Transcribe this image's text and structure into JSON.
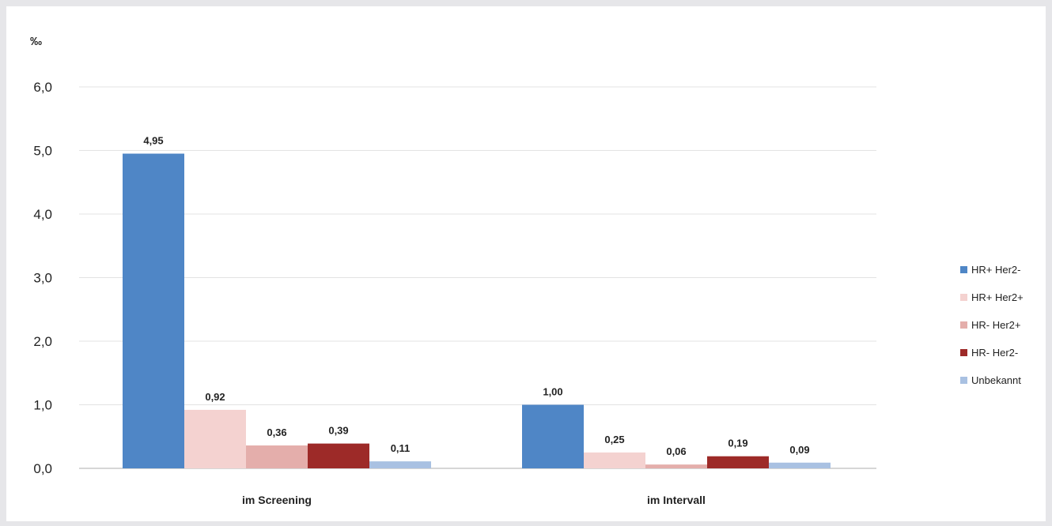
{
  "chart_data": {
    "type": "bar",
    "unit_label": "‰",
    "categories": [
      "im Screening",
      "im Intervall"
    ],
    "ylim": [
      0,
      6
    ],
    "yticks": [
      "0,0",
      "1,0",
      "2,0",
      "3,0",
      "4,0",
      "5,0",
      "6,0"
    ],
    "grid": true,
    "legend_position": "right",
    "series": [
      {
        "name": "HR+ Her2-",
        "color": "#4f86c6",
        "values": [
          4.95,
          1.0
        ],
        "labels": [
          "4,95",
          "1,00"
        ]
      },
      {
        "name": "HR+ Her2+",
        "color": "#f4d2d0",
        "values": [
          0.92,
          0.25
        ],
        "labels": [
          "0,92",
          "0,25"
        ]
      },
      {
        "name": "HR- Her2+",
        "color": "#e4aeab",
        "values": [
          0.36,
          0.06
        ],
        "labels": [
          "0,36",
          "0,06"
        ]
      },
      {
        "name": "HR- Her2-",
        "color": "#9d2a28",
        "values": [
          0.39,
          0.19
        ],
        "labels": [
          "0,39",
          "0,19"
        ]
      },
      {
        "name": "Unbekannt",
        "color": "#a9c1e2",
        "values": [
          0.11,
          0.09
        ],
        "labels": [
          "0,11",
          "0,09"
        ]
      }
    ]
  }
}
